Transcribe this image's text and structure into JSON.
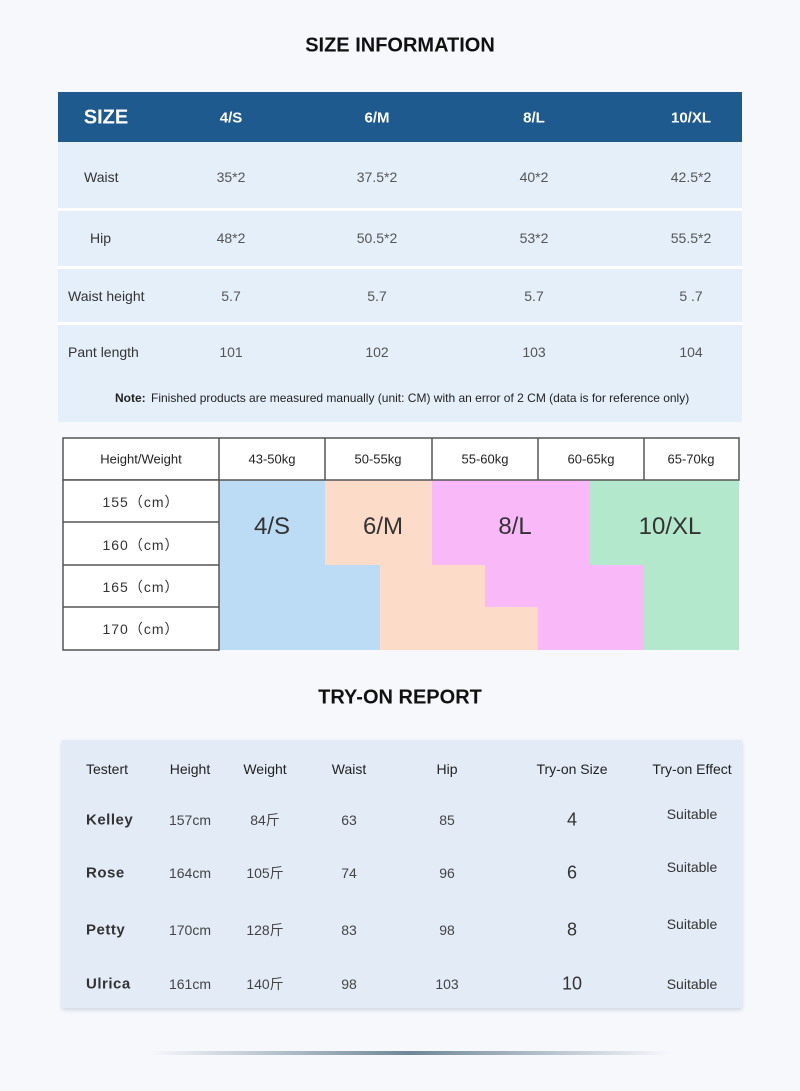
{
  "size_info": {
    "title": "SIZE INFORMATION",
    "header": [
      "SIZE",
      "4/S",
      "6/M",
      "8/L",
      "10/XL"
    ],
    "rows": [
      [
        "Waist",
        "35*2",
        "37.5*2",
        "40*2",
        "42.5*2"
      ],
      [
        "Hip",
        "48*2",
        "50.5*2",
        "53*2",
        "55.5*2"
      ],
      [
        "Waist height",
        "5.7",
        "5.7",
        "5.7",
        "5 .7"
      ],
      [
        "Pant length",
        "101",
        "102",
        "103",
        "104"
      ]
    ],
    "note_label": "Note:",
    "note": "Finished products are measured manually (unit: CM) with an error of 2 CM (data is for reference only)"
  },
  "fit_chart": {
    "header": [
      "Height/Weight",
      "43-50kg",
      "50-55kg",
      "55-60kg",
      "60-65kg",
      "65-70kg"
    ],
    "heights": [
      "155（cm）",
      "160（cm）",
      "165（cm）",
      "170（cm）"
    ],
    "sizes": [
      "4/S",
      "6/M",
      "8/L",
      "10/XL"
    ]
  },
  "try_on": {
    "title": "TRY-ON REPORT",
    "header": [
      "Testert",
      "Height",
      "Weight",
      "Waist",
      "Hip",
      "Try-on Size",
      "Try-on Effect"
    ],
    "rows": [
      [
        "Kelley",
        "157cm",
        "84斤",
        "63",
        "85",
        "4",
        "Suitable"
      ],
      [
        "Rose",
        "164cm",
        "105斤",
        "74",
        "96",
        "6",
        "Suitable"
      ],
      [
        "Petty",
        "170cm",
        "128斤",
        "83",
        "98",
        "8",
        "Suitable"
      ],
      [
        "Ulrica",
        "161cm",
        "140斤",
        "98",
        "103",
        "10",
        "Suitable"
      ]
    ]
  }
}
